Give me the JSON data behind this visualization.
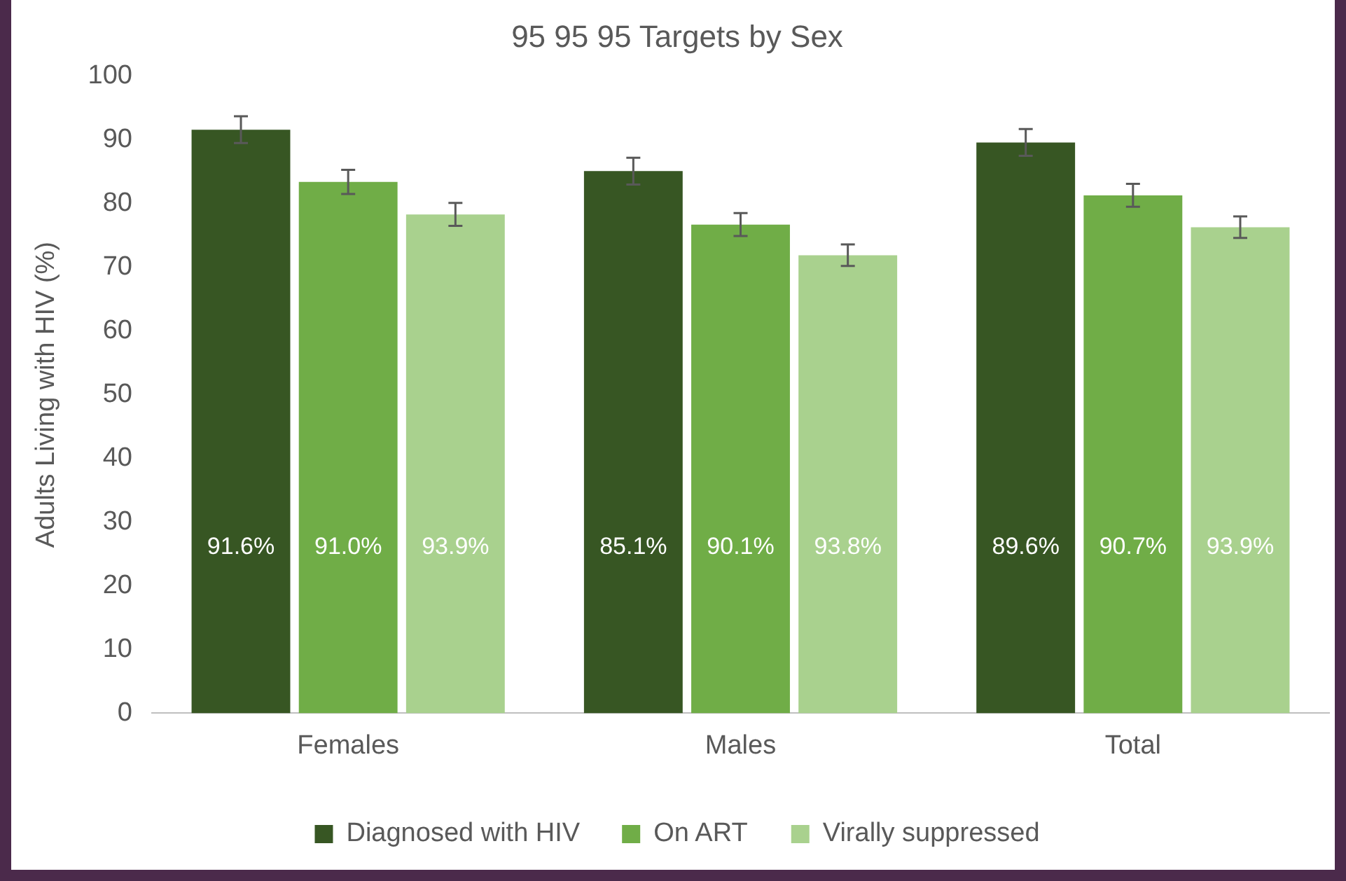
{
  "chart_data": {
    "type": "bar",
    "title": "95 95 95 Targets by Sex",
    "ylabel": "Adults Living with HIV (%)",
    "categories": [
      "Females",
      "Males",
      "Total"
    ],
    "ylim": [
      0,
      100
    ],
    "yticks": [
      0,
      10,
      20,
      30,
      40,
      50,
      60,
      70,
      80,
      90,
      100
    ],
    "grid": false,
    "legend": "bottom",
    "annotations": [
      "91.6%",
      "85.1%",
      "89.6%",
      "91.0%",
      "90.1%",
      "90.7%",
      "93.9%",
      "93.8%",
      "93.9%"
    ],
    "series": [
      {
        "name": "Diagnosed with HIV",
        "color": "#375623",
        "values": [
          91.6,
          85.1,
          89.6
        ],
        "errors": [
          2.1,
          2.1,
          2.1
        ]
      },
      {
        "name": "On ART",
        "color": "#70ad47",
        "values": [
          83.4,
          76.7,
          81.3
        ],
        "errors": [
          1.9,
          1.8,
          1.8
        ]
      },
      {
        "name": "Virally suppressed",
        "color": "#a9d18e",
        "values": [
          78.3,
          71.9,
          76.3
        ],
        "errors": [
          1.8,
          1.7,
          1.7
        ]
      }
    ]
  }
}
